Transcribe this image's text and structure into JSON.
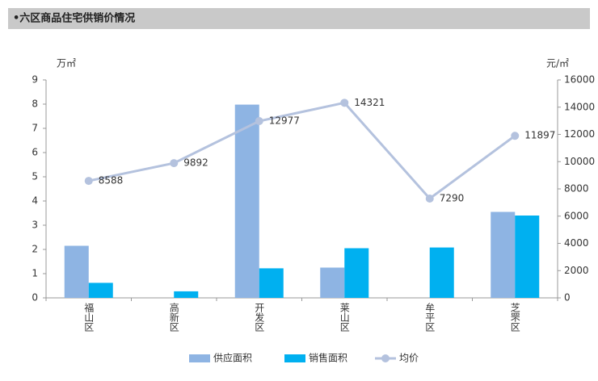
{
  "chart_data": {
    "type": "bar-line",
    "title": "•六区商品住宅供销价情况",
    "y_label": "万㎡",
    "y2_label": "元/㎡",
    "categories": [
      "福山区",
      "高新区",
      "开发区",
      "莱山区",
      "牟平区",
      "芝罘区"
    ],
    "series": [
      {
        "name": "供应面积",
        "color": "#8eb4e3",
        "type": "bar",
        "values": [
          2.15,
          null,
          7.98,
          1.25,
          null,
          3.55
        ]
      },
      {
        "name": "销售面积",
        "color": "#00b0f0",
        "type": "bar",
        "values": [
          0.62,
          0.27,
          1.22,
          2.05,
          2.08,
          3.4
        ]
      },
      {
        "name": "均价",
        "color": "#b4c2de",
        "type": "line",
        "axis": "y2",
        "values": [
          8588,
          9892,
          12977,
          14321,
          7290,
          11897
        ]
      }
    ],
    "ylim": [
      0,
      9
    ],
    "yticks": [
      0,
      1,
      2,
      3,
      4,
      5,
      6,
      7,
      8,
      9
    ],
    "y2lim": [
      0,
      16000
    ],
    "y2ticks": [
      0,
      2000,
      4000,
      6000,
      8000,
      10000,
      12000,
      14000,
      16000
    ],
    "legend": "bottom"
  }
}
